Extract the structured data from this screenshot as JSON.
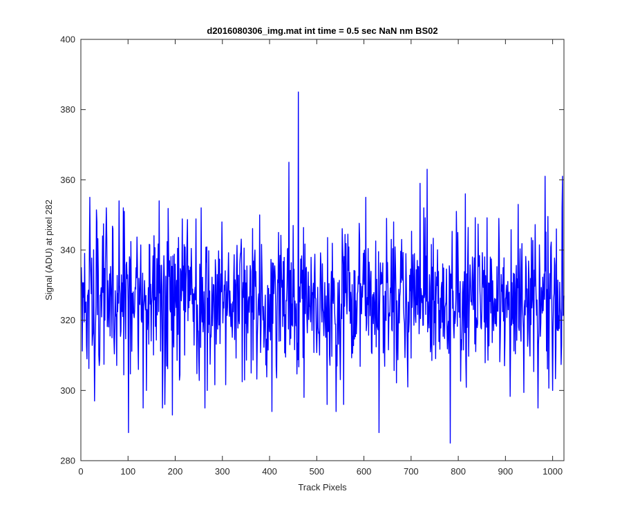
{
  "chart_data": {
    "type": "line",
    "title": "d2016080306_img.mat int time = 0.5 sec  NaN nm BS02",
    "xlabel": "Track Pixels",
    "ylabel": "Signal (ADU) at pixel 282",
    "xlim": [
      0,
      1024
    ],
    "ylim": [
      280,
      400
    ],
    "xticks": [
      "0",
      "100",
      "200",
      "300",
      "400",
      "500",
      "600",
      "700",
      "800",
      "900",
      "1000"
    ],
    "yticks": [
      "280",
      "300",
      "320",
      "340",
      "360",
      "380",
      "400"
    ],
    "grid": false,
    "line_color": "#0000ff",
    "series": [
      {
        "n_points": 1024,
        "baseline": 326,
        "noise_std": 10,
        "seed": 282,
        "notable_points": [
          {
            "x": 12,
            "y": 309
          },
          {
            "x": 18,
            "y": 355
          },
          {
            "x": 28,
            "y": 297
          },
          {
            "x": 33,
            "y": 348
          },
          {
            "x": 45,
            "y": 344
          },
          {
            "x": 67,
            "y": 346
          },
          {
            "x": 80,
            "y": 354
          },
          {
            "x": 91,
            "y": 351
          },
          {
            "x": 100,
            "y": 288
          },
          {
            "x": 131,
            "y": 295
          },
          {
            "x": 138,
            "y": 300
          },
          {
            "x": 165,
            "y": 354
          },
          {
            "x": 172,
            "y": 295
          },
          {
            "x": 177,
            "y": 296
          },
          {
            "x": 193,
            "y": 293
          },
          {
            "x": 262,
            "y": 295
          },
          {
            "x": 267,
            "y": 300
          },
          {
            "x": 298,
            "y": 348
          },
          {
            "x": 346,
            "y": 303
          },
          {
            "x": 378,
            "y": 350
          },
          {
            "x": 404,
            "y": 294
          },
          {
            "x": 418,
            "y": 345
          },
          {
            "x": 440,
            "y": 365
          },
          {
            "x": 449,
            "y": 347
          },
          {
            "x": 460,
            "y": 385
          },
          {
            "x": 521,
            "y": 296
          },
          {
            "x": 540,
            "y": 294
          },
          {
            "x": 556,
            "y": 296
          },
          {
            "x": 590,
            "y": 343
          },
          {
            "x": 603,
            "y": 355
          },
          {
            "x": 631,
            "y": 288
          },
          {
            "x": 647,
            "y": 349
          },
          {
            "x": 662,
            "y": 348
          },
          {
            "x": 679,
            "y": 343
          },
          {
            "x": 692,
            "y": 301
          },
          {
            "x": 718,
            "y": 359
          },
          {
            "x": 733,
            "y": 363
          },
          {
            "x": 741,
            "y": 313
          },
          {
            "x": 782,
            "y": 285
          },
          {
            "x": 795,
            "y": 351
          },
          {
            "x": 814,
            "y": 356
          },
          {
            "x": 885,
            "y": 349
          },
          {
            "x": 926,
            "y": 353
          },
          {
            "x": 968,
            "y": 295
          },
          {
            "x": 983,
            "y": 361
          },
          {
            "x": 999,
            "y": 300
          },
          {
            "x": 1007,
            "y": 346
          },
          {
            "x": 1018,
            "y": 313
          },
          {
            "x": 1020,
            "y": 361
          },
          {
            "x": 1023,
            "y": 327
          }
        ]
      }
    ]
  }
}
